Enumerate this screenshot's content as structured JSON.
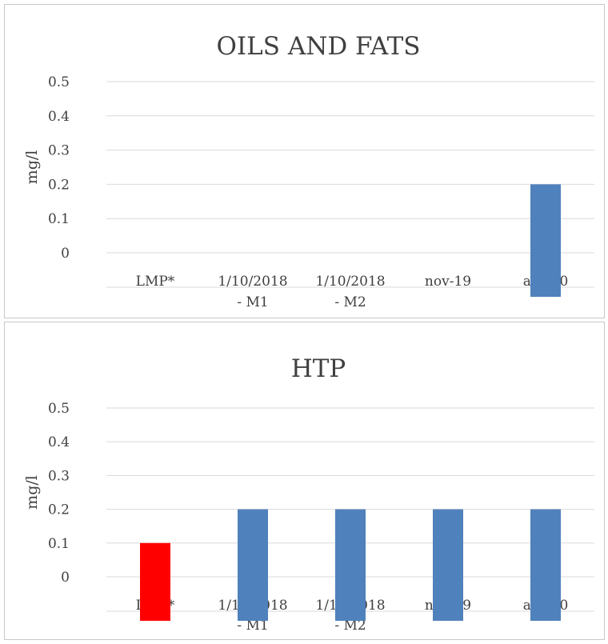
{
  "chart_data": [
    {
      "type": "bar",
      "title": "OILS AND FATS",
      "ylabel": "mg/l",
      "xlabel": "",
      "ylim": [
        0,
        0.5
      ],
      "yticks": [
        "0",
        "0.1",
        "0.2",
        "0.3",
        "0.4",
        "0.5"
      ],
      "categories": [
        [
          "LMP*"
        ],
        [
          "1/10/2018",
          "- M1"
        ],
        [
          "1/10/2018",
          "- M2"
        ],
        [
          "nov-19"
        ],
        [
          "abr-20"
        ]
      ],
      "values": [
        0,
        0,
        0,
        0,
        0.2
      ],
      "bar_colors": [
        "#4f81bd",
        "#4f81bd",
        "#4f81bd",
        "#4f81bd",
        "#4f81bd"
      ],
      "grid": true
    },
    {
      "type": "bar",
      "title": "HTP",
      "ylabel": "mg/l",
      "xlabel": "",
      "ylim": [
        0,
        0.5
      ],
      "yticks": [
        "0",
        "0.1",
        "0.2",
        "0.3",
        "0.4",
        "0.5"
      ],
      "categories": [
        [
          "LMP*"
        ],
        [
          "1/10/2018",
          "- M1"
        ],
        [
          "1/10/2018",
          "- M2"
        ],
        [
          "nov-19"
        ],
        [
          "abr-20"
        ]
      ],
      "values": [
        0.1,
        0.2,
        0.2,
        0.2,
        0.2
      ],
      "bar_colors": [
        "#ff0000",
        "#4f81bd",
        "#4f81bd",
        "#4f81bd",
        "#4f81bd"
      ],
      "grid": true
    }
  ]
}
